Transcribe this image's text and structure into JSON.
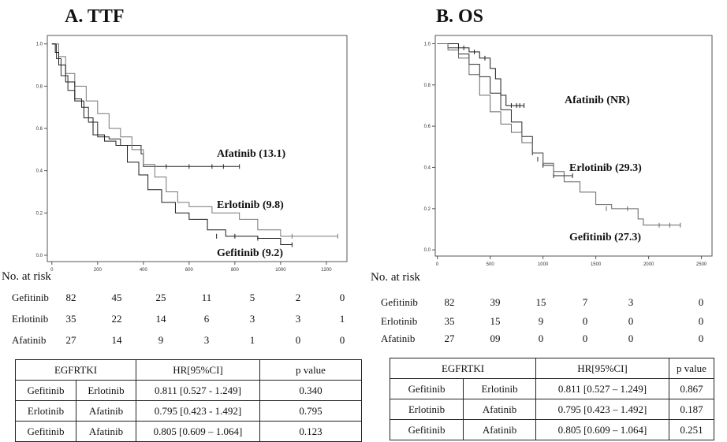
{
  "panels": [
    {
      "title": "A. TTF",
      "chart_data": {
        "type": "line",
        "xlabel": "",
        "ylabel": "",
        "xlim": [
          -20,
          1290
        ],
        "ylim": [
          -0.03,
          1.04
        ],
        "xticks": [
          0,
          200,
          400,
          600,
          800,
          1000,
          1200
        ],
        "yticks": [
          0.0,
          0.2,
          0.4,
          0.6,
          0.8,
          1.0
        ],
        "ytick_labels": [
          "0.0",
          "0.2",
          "0.4",
          "0.6",
          "0.8",
          "1.0"
        ],
        "grid": false,
        "series": [
          {
            "name": "Afatinib (13.1)",
            "color": "#2a2a2a",
            "points": [
              [
                0,
                1.0
              ],
              [
                20,
                0.93
              ],
              [
                40,
                0.85
              ],
              [
                70,
                0.78
              ],
              [
                100,
                0.74
              ],
              [
                130,
                0.7
              ],
              [
                160,
                0.63
              ],
              [
                200,
                0.56
              ],
              [
                250,
                0.55
              ],
              [
                300,
                0.52
              ],
              [
                390,
                0.48
              ],
              [
                400,
                0.42
              ],
              [
                820,
                0.42
              ]
            ],
            "censors": [
              [
                500,
                0.42
              ],
              [
                600,
                0.42
              ],
              [
                700,
                0.42
              ],
              [
                750,
                0.42
              ],
              [
                820,
                0.42
              ]
            ]
          },
          {
            "name": "Erlotinib (9.8)",
            "color": "#777777",
            "points": [
              [
                0,
                1.0
              ],
              [
                30,
                0.94
              ],
              [
                60,
                0.86
              ],
              [
                100,
                0.8
              ],
              [
                150,
                0.73
              ],
              [
                200,
                0.67
              ],
              [
                250,
                0.6
              ],
              [
                300,
                0.56
              ],
              [
                350,
                0.5
              ],
              [
                400,
                0.43
              ],
              [
                450,
                0.37
              ],
              [
                500,
                0.3
              ],
              [
                550,
                0.25
              ],
              [
                600,
                0.23
              ],
              [
                700,
                0.2
              ],
              [
                820,
                0.17
              ],
              [
                900,
                0.12
              ],
              [
                1000,
                0.09
              ],
              [
                1250,
                0.09
              ]
            ],
            "censors": [
              [
                1050,
                0.09
              ],
              [
                1250,
                0.09
              ]
            ]
          },
          {
            "name": "Gefitinib (9.2)",
            "color": "#1a1a1a",
            "points": [
              [
                0,
                1.0
              ],
              [
                15,
                0.96
              ],
              [
                30,
                0.9
              ],
              [
                60,
                0.82
              ],
              [
                100,
                0.73
              ],
              [
                140,
                0.65
              ],
              [
                180,
                0.57
              ],
              [
                230,
                0.54
              ],
              [
                280,
                0.52
              ],
              [
                330,
                0.44
              ],
              [
                380,
                0.38
              ],
              [
                420,
                0.31
              ],
              [
                480,
                0.25
              ],
              [
                540,
                0.2
              ],
              [
                600,
                0.17
              ],
              [
                680,
                0.12
              ],
              [
                760,
                0.09
              ],
              [
                900,
                0.08
              ],
              [
                1000,
                0.05
              ],
              [
                1050,
                0.05
              ]
            ],
            "censors": [
              [
                720,
                0.09
              ],
              [
                800,
                0.09
              ],
              [
                900,
                0.08
              ],
              [
                1050,
                0.05
              ]
            ]
          }
        ]
      },
      "risk": {
        "label": "No. at risk",
        "rows": [
          {
            "name": "Gefitinib",
            "values": [
              "82",
              "45",
              "25",
              "11",
              "5",
              "2",
              "0"
            ]
          },
          {
            "name": "Erlotinib",
            "values": [
              "35",
              "22",
              "14",
              "6",
              "3",
              "3",
              "1"
            ]
          },
          {
            "name": "Afatinib",
            "values": [
              "27",
              "14",
              "9",
              "3",
              "1",
              "0",
              "0"
            ]
          }
        ]
      },
      "hr_table": {
        "headers": [
          "EGFRTKI",
          "HR[95%CI]",
          "p value"
        ],
        "rows": [
          [
            "Gefitinib",
            "Erlotinib",
            "0.811  [0.527 - 1.249]",
            "0.340"
          ],
          [
            "Erlotinib",
            "Afatinib",
            "0.795 [0.423 - 1.492]",
            "0.795"
          ],
          [
            "Gefitinib",
            "Afatinib",
            "0.805 [0.609 – 1.064]",
            "0.123"
          ]
        ]
      }
    },
    {
      "title": "B. OS",
      "chart_data": {
        "type": "line",
        "xlabel": "",
        "ylabel": "",
        "xlim": [
          -20,
          2600
        ],
        "ylim": [
          -0.03,
          1.04
        ],
        "xticks": [
          0,
          500,
          1000,
          1500,
          2000,
          2500
        ],
        "yticks": [
          0.0,
          0.2,
          0.4,
          0.6,
          0.8,
          1.0
        ],
        "ytick_labels": [
          "0.0",
          "0.2",
          "0.4",
          "0.6",
          "0.8",
          "1.0"
        ],
        "grid": false,
        "series": [
          {
            "name": "Afatinib (NR)",
            "color": "#1a1a1a",
            "points": [
              [
                0,
                1.0
              ],
              [
                150,
                1.0
              ],
              [
                200,
                0.98
              ],
              [
                300,
                0.96
              ],
              [
                400,
                0.93
              ],
              [
                500,
                0.88
              ],
              [
                550,
                0.83
              ],
              [
                600,
                0.75
              ],
              [
                650,
                0.7
              ],
              [
                820,
                0.7
              ]
            ],
            "censors": [
              [
                250,
                0.98
              ],
              [
                350,
                0.96
              ],
              [
                450,
                0.93
              ],
              [
                700,
                0.7
              ],
              [
                750,
                0.7
              ],
              [
                780,
                0.7
              ],
              [
                820,
                0.7
              ]
            ]
          },
          {
            "name": "Erlotinib (29.3)",
            "color": "#2a2a2a",
            "points": [
              [
                0,
                1.0
              ],
              [
                100,
                0.98
              ],
              [
                200,
                0.95
              ],
              [
                300,
                0.9
              ],
              [
                400,
                0.84
              ],
              [
                500,
                0.76
              ],
              [
                600,
                0.68
              ],
              [
                700,
                0.62
              ],
              [
                800,
                0.55
              ],
              [
                900,
                0.47
              ],
              [
                1000,
                0.41
              ],
              [
                1100,
                0.36
              ],
              [
                1200,
                0.36
              ],
              [
                1280,
                0.36
              ]
            ],
            "censors": [
              [
                900,
                0.47
              ],
              [
                950,
                0.44
              ],
              [
                1000,
                0.41
              ],
              [
                1100,
                0.36
              ],
              [
                1200,
                0.36
              ],
              [
                1280,
                0.36
              ]
            ]
          },
          {
            "name": "Gefitinib (27.3)",
            "color": "#666666",
            "points": [
              [
                0,
                1.0
              ],
              [
                100,
                0.97
              ],
              [
                200,
                0.93
              ],
              [
                300,
                0.85
              ],
              [
                400,
                0.75
              ],
              [
                500,
                0.67
              ],
              [
                600,
                0.61
              ],
              [
                700,
                0.57
              ],
              [
                800,
                0.52
              ],
              [
                900,
                0.47
              ],
              [
                1000,
                0.42
              ],
              [
                1100,
                0.38
              ],
              [
                1200,
                0.33
              ],
              [
                1350,
                0.28
              ],
              [
                1500,
                0.22
              ],
              [
                1650,
                0.2
              ],
              [
                1900,
                0.15
              ],
              [
                1950,
                0.12
              ],
              [
                2300,
                0.12
              ]
            ],
            "censors": [
              [
                1100,
                0.38
              ],
              [
                1600,
                0.2
              ],
              [
                1800,
                0.2
              ],
              [
                2100,
                0.12
              ],
              [
                2200,
                0.12
              ],
              [
                2300,
                0.12
              ]
            ]
          }
        ]
      },
      "risk": {
        "label": "No. at risk",
        "rows": [
          {
            "name": "Gefitinib",
            "values": [
              "82",
              "39",
              "15",
              "7",
              "3",
              "0"
            ]
          },
          {
            "name": "Erlotinib",
            "values": [
              "35",
              "15",
              "9",
              "0",
              "0",
              "0"
            ]
          },
          {
            "name": "Afatinib",
            "values": [
              "27",
              "09",
              "0",
              "0",
              "0",
              "0"
            ]
          }
        ]
      },
      "hr_table": {
        "headers": [
          "EGFRTKI",
          "HR[95%CI]",
          "p value"
        ],
        "rows": [
          [
            "Gefitinib",
            "Erlotinib",
            "0.811 [0.527 – 1.249]",
            "0.867"
          ],
          [
            "Erlotinib",
            "Afatinib",
            "0.795 [0.423 – 1.492]",
            "0.187"
          ],
          [
            "Gefitinib",
            "Afatinib",
            "0.805 [0.609 – 1.064]",
            "0.251"
          ]
        ]
      }
    }
  ]
}
